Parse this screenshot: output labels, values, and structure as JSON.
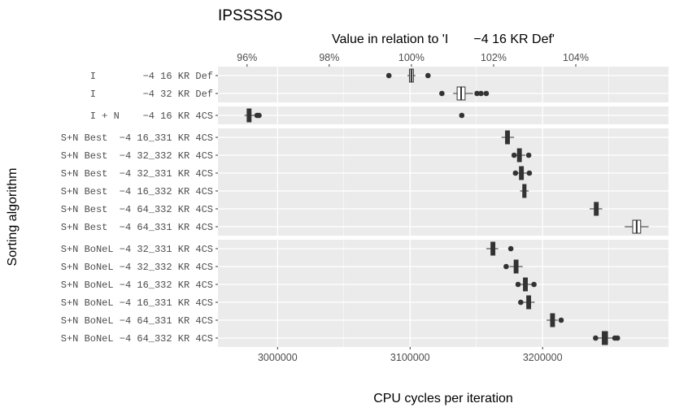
{
  "chart_data": {
    "type": "boxplot",
    "title": "IPSSSSo",
    "xlabel": "CPU cycles per iteration",
    "ylabel": "Sorting algorithm",
    "x2label": "Value in relation to 'I       −4 16 KR Def'",
    "xlim": [
      2955000,
      3295000
    ],
    "reference_value": 3101000,
    "x_ticks": [
      {
        "value": 3000000,
        "label": "3000000"
      },
      {
        "value": 3100000,
        "label": "3100000"
      },
      {
        "value": 3200000,
        "label": "3200000"
      }
    ],
    "x2_ticks": [
      {
        "value": 0.96,
        "label": "96%"
      },
      {
        "value": 0.98,
        "label": "98%"
      },
      {
        "value": 1.0,
        "label": "100%"
      },
      {
        "value": 1.02,
        "label": "102%"
      },
      {
        "value": 1.04,
        "label": "104%"
      }
    ],
    "panels": [
      {
        "categories": [
          {
            "label": "I        −4 16 KR Def",
            "q1": 3099500,
            "median": 3101000,
            "q3": 3102500,
            "wmin": 3098000,
            "wmax": 3104000,
            "fill": "#e6e6e6",
            "outliers": [
              3084000,
              3113500
            ]
          },
          {
            "label": "I        −4 32 KR Def",
            "q1": 3135500,
            "median": 3138500,
            "q3": 3141500,
            "wmin": 3132500,
            "wmax": 3147500,
            "fill": "#ffffff",
            "outliers": [
              3124000,
              3150500,
              3153500,
              3157500
            ]
          }
        ]
      },
      {
        "categories": [
          {
            "label": "I + N    −4 16 KR 4CS",
            "q1": 2977000,
            "median": 2978500,
            "q3": 2980000,
            "wmin": 2975000,
            "wmax": 2983000,
            "fill": "#333333",
            "outliers": [
              2984500,
              2986000,
              3139000
            ]
          }
        ]
      },
      {
        "categories": [
          {
            "label": "S+N Best  −4 16_331 KR 4CS",
            "q1": 3172000,
            "median": 3173500,
            "q3": 3175000,
            "wmin": 3169000,
            "wmax": 3178500,
            "fill": "#333333",
            "outliers": []
          },
          {
            "label": "S+N Best  −4 32_332 KR 4CS",
            "q1": 3181000,
            "median": 3182500,
            "q3": 3184000,
            "wmin": 3178000,
            "wmax": 3187000,
            "fill": "#333333",
            "outliers": [
              3178500,
              3189500
            ]
          },
          {
            "label": "S+N Best  −4 32_331 KR 4CS",
            "q1": 3182500,
            "median": 3184000,
            "q3": 3185500,
            "wmin": 3180000,
            "wmax": 3188500,
            "fill": "#333333",
            "outliers": [
              3179500,
              3190000
            ]
          },
          {
            "label": "S+N Best  −4 16_332 KR 4CS",
            "q1": 3185000,
            "median": 3186000,
            "q3": 3187500,
            "wmin": 3183000,
            "wmax": 3189500,
            "fill": "#333333",
            "outliers": []
          },
          {
            "label": "S+N Best  −4 64_332 KR 4CS",
            "q1": 3239000,
            "median": 3240500,
            "q3": 3242000,
            "wmin": 3235500,
            "wmax": 3245000,
            "fill": "#333333",
            "outliers": []
          },
          {
            "label": "S+N Best  −4 64_331 KR 4CS",
            "q1": 3268000,
            "median": 3271000,
            "q3": 3274000,
            "wmin": 3262000,
            "wmax": 3280000,
            "fill": "#ffffff",
            "outliers": []
          }
        ]
      },
      {
        "categories": [
          {
            "label": "S+N BoNeL −4 32_331 KR 4CS",
            "q1": 3161000,
            "median": 3162500,
            "q3": 3164000,
            "wmin": 3157500,
            "wmax": 3166500,
            "fill": "#333333",
            "outliers": [
              3176000
            ]
          },
          {
            "label": "S+N BoNeL −4 32_332 KR 4CS",
            "q1": 3178500,
            "median": 3180000,
            "q3": 3181500,
            "wmin": 3175000,
            "wmax": 3185000,
            "fill": "#333333",
            "outliers": [
              3172500
            ]
          },
          {
            "label": "S+N BoNeL −4 16_332 KR 4CS",
            "q1": 3185500,
            "median": 3187000,
            "q3": 3188500,
            "wmin": 3182000,
            "wmax": 3192000,
            "fill": "#333333",
            "outliers": [
              3181500,
              3193500
            ]
          },
          {
            "label": "S+N BoNeL −4 16_331 KR 4CS",
            "q1": 3188000,
            "median": 3189500,
            "q3": 3191000,
            "wmin": 3185000,
            "wmax": 3194000,
            "fill": "#333333",
            "outliers": [
              3183500
            ]
          },
          {
            "label": "S+N BoNeL −4 64_331 KR 4CS",
            "q1": 3206000,
            "median": 3207500,
            "q3": 3209000,
            "wmin": 3203000,
            "wmax": 3211500,
            "fill": "#333333",
            "outliers": [
              3214000
            ]
          },
          {
            "label": "S+N BoNeL −4 64_332 KR 4CS",
            "q1": 3245000,
            "median": 3247000,
            "q3": 3249000,
            "wmin": 3240000,
            "wmax": 3254000,
            "fill": "#333333",
            "outliers": [
              3240000,
              3254500,
              3256500
            ]
          }
        ]
      }
    ],
    "colors": {
      "panel_bg": "#ebebeb",
      "grid": "#ffffff",
      "box_line": "#333333",
      "point": "#333333"
    }
  }
}
